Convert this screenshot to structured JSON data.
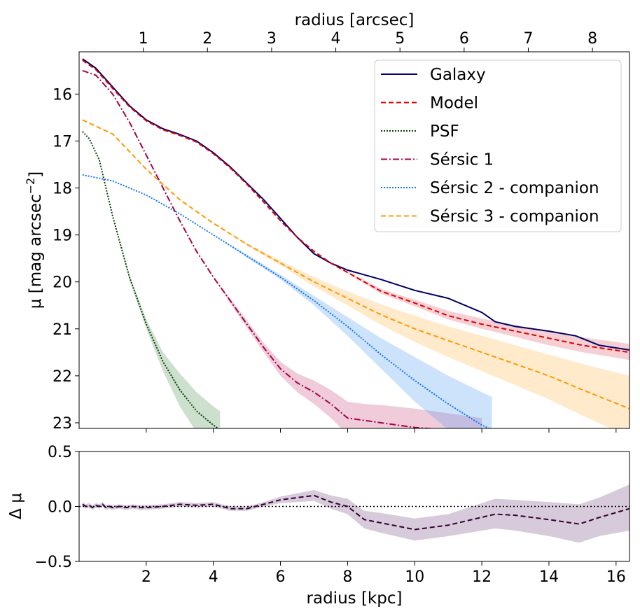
{
  "chart_data": [
    {
      "type": "line",
      "name": "surface-brightness-profile",
      "xlabel": "radius [kpc]",
      "x_top_label": "radius [arcsec]",
      "ylabel_main": "μ [mag arcsec",
      "ylabel_exp": "−2",
      "ylabel_tail": "]",
      "xlim": [
        0.0,
        16.4
      ],
      "ylim": [
        23.12,
        15.1
      ],
      "arcsec_per_kpc": 0.523,
      "yticks": [
        16,
        17,
        18,
        19,
        20,
        21,
        22,
        23
      ],
      "ytick_labels": [
        "16",
        "17",
        "18",
        "19",
        "20",
        "21",
        "22",
        "23"
      ],
      "top_ticks_arcsec": [
        1,
        2,
        3,
        4,
        5,
        6,
        7,
        8
      ],
      "top_tick_labels": [
        "1",
        "2",
        "3",
        "4",
        "5",
        "6",
        "7",
        "8"
      ],
      "legend_position": "top-right",
      "series": [
        {
          "name": "Galaxy",
          "color": "#000066",
          "dash": "solid",
          "x": [
            0.1,
            0.5,
            1.0,
            1.5,
            2.0,
            2.5,
            3.0,
            3.5,
            4.0,
            4.5,
            5.0,
            5.5,
            6.0,
            6.5,
            7.0,
            7.5,
            8.0,
            9.0,
            10.0,
            11.0,
            12.0,
            12.4,
            13.0,
            14.0,
            14.8,
            15.5,
            16.4
          ],
          "y": [
            15.25,
            15.45,
            15.85,
            16.25,
            16.55,
            16.74,
            16.86,
            17.0,
            17.25,
            17.55,
            17.9,
            18.25,
            18.65,
            19.05,
            19.4,
            19.6,
            19.75,
            19.95,
            20.18,
            20.35,
            20.65,
            20.85,
            20.95,
            21.05,
            21.15,
            21.35,
            21.45
          ],
          "band": null
        },
        {
          "name": "Model",
          "color": "#e00000",
          "dash": "dashed",
          "x": [
            0.1,
            0.5,
            1.0,
            1.5,
            2.0,
            2.5,
            3.0,
            3.5,
            4.0,
            4.5,
            5.0,
            5.5,
            6.0,
            6.5,
            7.0,
            7.5,
            8.0,
            9.0,
            10.0,
            11.0,
            12.0,
            13.0,
            14.0,
            15.0,
            16.4
          ],
          "y": [
            15.28,
            15.48,
            15.88,
            16.27,
            16.57,
            16.76,
            16.88,
            17.02,
            17.27,
            17.57,
            17.92,
            18.3,
            18.7,
            19.05,
            19.35,
            19.6,
            19.8,
            20.2,
            20.45,
            20.72,
            20.9,
            21.05,
            21.2,
            21.35,
            21.5
          ],
          "band": {
            "color": "#e06070",
            "opacity": 0.3,
            "lower": [
              15.28,
              15.48,
              15.88,
              16.27,
              16.57,
              16.76,
              16.88,
              17.02,
              17.27,
              17.57,
              17.92,
              18.3,
              18.7,
              19.05,
              19.35,
              19.6,
              19.78,
              20.15,
              20.38,
              20.62,
              20.78,
              20.92,
              21.05,
              21.18,
              21.32
            ],
            "upper": [
              15.28,
              15.48,
              15.88,
              16.27,
              16.57,
              16.76,
              16.88,
              17.02,
              17.27,
              17.57,
              17.92,
              18.3,
              18.7,
              19.05,
              19.35,
              19.6,
              19.82,
              20.25,
              20.52,
              20.8,
              21.0,
              21.17,
              21.35,
              21.5,
              21.66
            ]
          }
        },
        {
          "name": "PSF",
          "color": "#004400",
          "dash": "dotted",
          "x": [
            0.1,
            0.3,
            0.6,
            1.0,
            1.5,
            2.0,
            2.5,
            3.0,
            3.5,
            4.0,
            4.2
          ],
          "y": [
            16.8,
            16.95,
            17.4,
            18.6,
            19.9,
            20.9,
            21.7,
            22.3,
            22.75,
            23.05,
            23.15
          ],
          "band": {
            "color": "#5a945a",
            "opacity": 0.3,
            "lower": [
              16.8,
              16.95,
              17.4,
              18.6,
              19.85,
              20.8,
              21.5,
              21.95,
              22.35,
              22.65,
              22.75
            ],
            "upper": [
              16.8,
              16.95,
              17.4,
              18.6,
              19.95,
              21.0,
              21.9,
              22.65,
              23.2,
              23.6,
              23.7
            ]
          }
        },
        {
          "name": "Sérsic 1",
          "color": "#aa0044",
          "dash": "dashdot",
          "x": [
            0.1,
            0.5,
            1.0,
            1.5,
            2.0,
            2.5,
            3.0,
            3.5,
            4.0,
            4.5,
            5.0,
            5.5,
            6.0,
            6.5,
            7.0,
            7.5,
            8.0,
            8.5,
            9.0,
            10.0,
            11.0,
            12.0
          ],
          "y": [
            15.5,
            15.6,
            16.0,
            16.6,
            17.3,
            18.0,
            18.7,
            19.35,
            19.9,
            20.4,
            20.9,
            21.4,
            21.85,
            22.15,
            22.35,
            22.6,
            22.9,
            22.95,
            23.0,
            23.1,
            23.15,
            23.2
          ],
          "band": {
            "color": "#cc5588",
            "opacity": 0.3,
            "lower": [
              15.5,
              15.6,
              16.0,
              16.6,
              17.3,
              18.0,
              18.7,
              19.35,
              19.9,
              20.35,
              20.82,
              21.3,
              21.7,
              21.95,
              22.1,
              22.3,
              22.55,
              22.6,
              22.62,
              22.7,
              22.8,
              22.9
            ],
            "upper": [
              15.5,
              15.6,
              16.0,
              16.6,
              17.3,
              18.0,
              18.7,
              19.35,
              19.9,
              20.45,
              20.98,
              21.5,
              22.0,
              22.35,
              22.6,
              22.9,
              23.25,
              23.4,
              23.45,
              23.55,
              23.6,
              23.65
            ]
          }
        },
        {
          "name": "Sérsic 2 - companion",
          "color": "#1177ee",
          "dash": "dotted",
          "x": [
            0.1,
            1.0,
            2.0,
            3.0,
            4.0,
            5.0,
            6.0,
            7.0,
            8.0,
            9.0,
            10.0,
            11.0,
            12.0,
            12.3
          ],
          "y": [
            17.72,
            17.85,
            18.15,
            18.55,
            19.0,
            19.45,
            19.9,
            20.4,
            20.95,
            21.55,
            22.1,
            22.6,
            23.05,
            23.15
          ],
          "band": {
            "color": "#4a98f0",
            "opacity": 0.28,
            "lower": [
              17.72,
              17.85,
              18.15,
              18.55,
              19.0,
              19.42,
              19.85,
              20.3,
              20.75,
              21.2,
              21.6,
              22.0,
              22.35,
              22.45
            ],
            "upper": [
              17.72,
              17.85,
              18.15,
              18.55,
              19.0,
              19.48,
              19.95,
              20.5,
              21.15,
              21.85,
              22.55,
              23.15,
              23.6,
              23.7
            ]
          }
        },
        {
          "name": "Sérsic 3 - companion",
          "color": "#ff9900",
          "dash": "dashed",
          "x": [
            0.1,
            1.0,
            2.0,
            3.0,
            4.0,
            5.0,
            6.0,
            7.0,
            8.0,
            9.0,
            10.0,
            11.0,
            12.0,
            13.0,
            14.0,
            15.0,
            16.4
          ],
          "y": [
            16.55,
            16.85,
            17.6,
            18.25,
            18.75,
            19.2,
            19.6,
            20.0,
            20.35,
            20.7,
            21.0,
            21.25,
            21.5,
            21.75,
            22.0,
            22.3,
            22.7
          ],
          "band": {
            "color": "#ffaa33",
            "opacity": 0.25,
            "lower": [
              16.55,
              16.85,
              17.6,
              18.25,
              18.75,
              19.18,
              19.55,
              19.9,
              20.2,
              20.48,
              20.72,
              20.95,
              21.15,
              21.35,
              21.55,
              21.75,
              22.0
            ],
            "upper": [
              16.55,
              16.85,
              17.6,
              18.25,
              18.75,
              19.22,
              19.65,
              20.1,
              20.5,
              20.92,
              21.28,
              21.6,
              21.9,
              22.2,
              22.5,
              22.85,
              23.3
            ]
          }
        }
      ]
    },
    {
      "type": "line",
      "name": "residuals",
      "xlabel": "radius [kpc]",
      "ylabel": "Δ μ",
      "xlim": [
        0.0,
        16.4
      ],
      "ylim": [
        -0.5,
        0.5
      ],
      "xticks": [
        2,
        4,
        6,
        8,
        10,
        12,
        14,
        16
      ],
      "xtick_labels": [
        "2",
        "4",
        "6",
        "8",
        "10",
        "12",
        "14",
        "16"
      ],
      "yticks": [
        0.5,
        0.0,
        -0.5
      ],
      "ytick_labels": [
        "0.5",
        "0.0",
        "−0.5"
      ],
      "reference_line": 0.0,
      "series": [
        {
          "name": "residual",
          "color": "#330033",
          "dash": "dashed",
          "x": [
            0.1,
            0.2,
            0.3,
            0.4,
            0.5,
            0.6,
            0.7,
            0.8,
            0.9,
            1.0,
            1.2,
            1.4,
            1.6,
            1.8,
            2.0,
            2.5,
            3.0,
            3.5,
            4.0,
            4.5,
            5.0,
            5.5,
            6.0,
            6.5,
            7.0,
            7.5,
            8.0,
            8.5,
            9.0,
            10.0,
            11.0,
            12.4,
            13.0,
            14.0,
            14.9,
            15.5,
            16.4
          ],
          "y": [
            0.02,
            0.0,
            0.01,
            -0.01,
            0.01,
            0.0,
            0.02,
            -0.01,
            0.0,
            -0.01,
            0.0,
            -0.01,
            0.0,
            -0.01,
            -0.01,
            0.0,
            0.02,
            0.01,
            0.02,
            -0.02,
            -0.02,
            0.02,
            0.06,
            0.08,
            0.1,
            0.04,
            0.0,
            -0.12,
            -0.15,
            -0.21,
            -0.17,
            -0.07,
            -0.08,
            -0.12,
            -0.16,
            -0.1,
            -0.02
          ],
          "band_color": "#9b7ba2",
          "band_opacity": 0.4,
          "band_lower": [
            0.0,
            -0.02,
            -0.01,
            -0.03,
            -0.01,
            -0.02,
            0.0,
            -0.03,
            -0.02,
            -0.03,
            -0.02,
            -0.03,
            -0.02,
            -0.03,
            -0.03,
            -0.02,
            0.0,
            -0.01,
            0.0,
            -0.04,
            -0.04,
            0.0,
            0.03,
            0.04,
            0.05,
            -0.02,
            -0.07,
            -0.2,
            -0.24,
            -0.31,
            -0.27,
            -0.2,
            -0.22,
            -0.27,
            -0.33,
            -0.27,
            -0.22
          ],
          "band_upper": [
            0.04,
            0.02,
            0.03,
            0.01,
            0.03,
            0.02,
            0.04,
            0.01,
            0.02,
            0.01,
            0.02,
            0.01,
            0.02,
            0.01,
            0.01,
            0.02,
            0.04,
            0.03,
            0.04,
            0.0,
            0.0,
            0.04,
            0.09,
            0.12,
            0.15,
            0.1,
            0.07,
            -0.04,
            -0.06,
            -0.11,
            -0.07,
            0.07,
            0.06,
            0.04,
            0.02,
            0.08,
            0.2
          ]
        }
      ]
    }
  ]
}
